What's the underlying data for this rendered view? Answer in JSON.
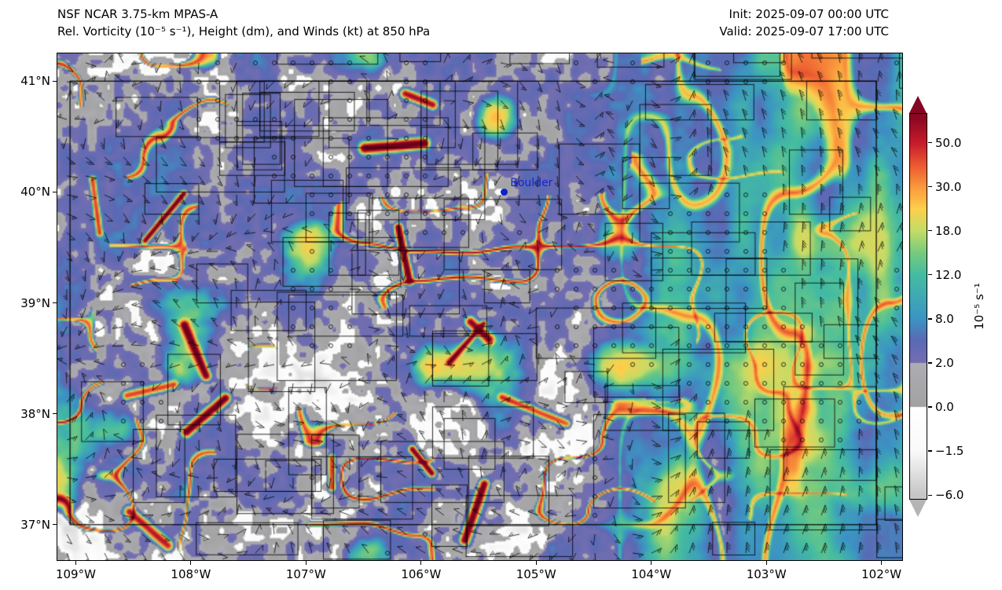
{
  "header": {
    "model_title": "NSF NCAR 3.75-km MPAS-A",
    "field_title": "Rel. Vorticity (10⁻⁵ s⁻¹), Height (dm), and Winds (kt) at 850 hPa",
    "init_time": "Init: 2025-09-07 00:00 UTC",
    "valid_time": "Valid: 2025-09-07 17:00 UTC"
  },
  "map": {
    "extent": {
      "lon_min": -109.16,
      "lon_max": -101.82,
      "lat_min": 36.68,
      "lat_max": 41.25
    },
    "x_ticks": [
      {
        "label": "109°W",
        "lon": -109
      },
      {
        "label": "108°W",
        "lon": -108
      },
      {
        "label": "107°W",
        "lon": -107
      },
      {
        "label": "106°W",
        "lon": -106
      },
      {
        "label": "105°W",
        "lon": -105
      },
      {
        "label": "104°W",
        "lon": -104
      },
      {
        "label": "103°W",
        "lon": -103
      },
      {
        "label": "102°W",
        "lon": -102
      }
    ],
    "y_ticks": [
      {
        "label": "41°N",
        "lat": 41
      },
      {
        "label": "40°N",
        "lat": 40
      },
      {
        "label": "39°N",
        "lat": 39
      },
      {
        "label": "38°N",
        "lat": 38
      },
      {
        "label": "37°N",
        "lat": 37
      }
    ],
    "city_marker": {
      "label": "Boulder",
      "lon": -105.28,
      "lat": 40.0,
      "dot_color": "#0d22cf",
      "label_color": "#1525cc"
    }
  },
  "colorbar": {
    "unit_label": "10⁻⁵ s⁻¹",
    "tick_labels": [
      "50.0",
      "30.0",
      "18.0",
      "12.0",
      "8.0",
      "2.0",
      "0.0",
      "−1.5",
      "−6.0"
    ],
    "tick_values": [
      50,
      30,
      18,
      12,
      8,
      2,
      0,
      -1.5,
      -6
    ]
  },
  "chart_data": {
    "type": "heatmap",
    "title": "Rel. Vorticity (10⁻⁵ s⁻¹), Height (dm), and Winds (kt) at 850 hPa",
    "model": "NSF NCAR 3.75-km MPAS-A",
    "init": "2025-09-07 00:00 UTC",
    "valid": "2025-09-07 17:00 UTC",
    "variable": "relative vorticity",
    "units": "10⁻⁵ s⁻¹",
    "level": "850 hPa",
    "wind_units": "kt",
    "height_units": "dm",
    "legend_position": "right",
    "grid": false,
    "colorbar_levels": [
      -6.0,
      -1.5,
      0.0,
      2.0,
      8.0,
      12.0,
      18.0,
      30.0,
      50.0
    ],
    "colorbar_extend": "both",
    "x_axis": {
      "tick_labels": [
        "109°W",
        "108°W",
        "107°W",
        "106°W",
        "105°W",
        "104°W",
        "103°W",
        "102°W"
      ],
      "range_lon": [
        -109.16,
        -101.82
      ]
    },
    "y_axis": {
      "tick_labels": [
        "41°N",
        "40°N",
        "39°N",
        "38°N",
        "37°N"
      ],
      "range_lat": [
        36.68,
        41.25
      ]
    },
    "annotations": [
      {
        "label": "Boulder",
        "lon": -105.28,
        "lat": 40.0
      }
    ],
    "overlays": [
      "county boundaries",
      "state border of Colorado",
      "wind barbs",
      "calm-wind circles"
    ],
    "colormap_anchors": [
      {
        "value": -7,
        "color": [
          178,
          178,
          178
        ]
      },
      {
        "value": -6,
        "color": [
          198,
          198,
          198
        ]
      },
      {
        "value": -1.5,
        "color": [
          250,
          250,
          250
        ]
      },
      {
        "value": -0.001,
        "color": [
          255,
          255,
          255
        ]
      },
      {
        "value": 0,
        "color": [
          162,
          162,
          162
        ]
      },
      {
        "value": 1.999,
        "color": [
          173,
          173,
          179
        ]
      },
      {
        "value": 2,
        "color": [
          117,
          110,
          176
        ]
      },
      {
        "value": 5,
        "color": [
          91,
          105,
          180
        ]
      },
      {
        "value": 8,
        "color": [
          60,
          148,
          196
        ]
      },
      {
        "value": 12,
        "color": [
          68,
          188,
          162
        ]
      },
      {
        "value": 15,
        "color": [
          118,
          202,
          126
        ]
      },
      {
        "value": 18,
        "color": [
          196,
          220,
          104
        ]
      },
      {
        "value": 24,
        "color": [
          252,
          208,
          76
        ]
      },
      {
        "value": 30,
        "color": [
          250,
          153,
          61
        ]
      },
      {
        "value": 40,
        "color": [
          236,
          88,
          49
        ]
      },
      {
        "value": 50,
        "color": [
          198,
          28,
          44
        ]
      },
      {
        "value": 62,
        "color": [
          140,
          8,
          34
        ]
      },
      {
        "value": 80,
        "color": [
          108,
          0,
          28
        ]
      }
    ]
  }
}
